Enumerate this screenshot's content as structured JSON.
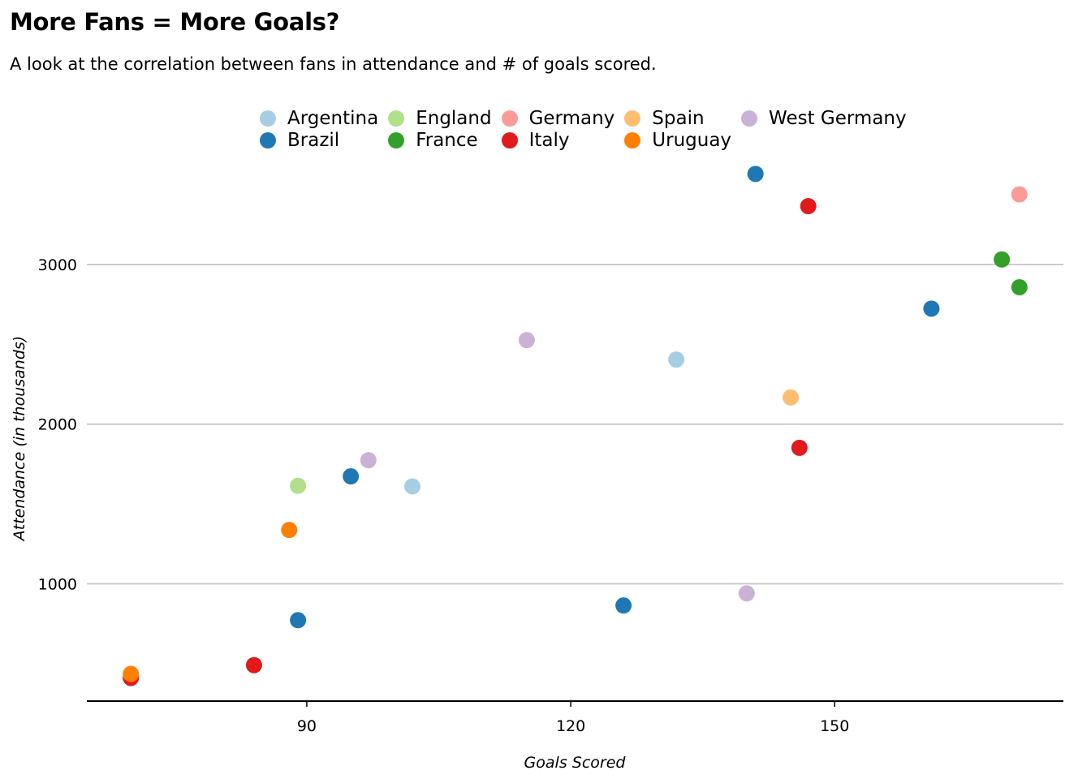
{
  "chart_data": {
    "type": "scatter",
    "title": "More Fans = More Goals?",
    "subtitle": "A look at the correlation between fans in attendance and # of goals scored.",
    "xlabel": "Goals Scored",
    "ylabel": "Attendance (in thousands)",
    "xlim": [
      65,
      176
    ],
    "ylim": [
      270,
      3590
    ],
    "xticks": [
      90,
      120,
      150
    ],
    "yticks": [
      1000,
      2000,
      3000
    ],
    "grid": "horizontal",
    "legend_position": "top",
    "series": [
      {
        "name": "Argentina",
        "color": "#a6cee3",
        "points": [
          [
            102,
            1610
          ],
          [
            132,
            2405
          ]
        ]
      },
      {
        "name": "Brazil",
        "color": "#1f78b4",
        "points": [
          [
            89,
            772
          ],
          [
            95,
            1673
          ],
          [
            126,
            864
          ],
          [
            141,
            3568
          ],
          [
            161,
            2724
          ]
        ]
      },
      {
        "name": "England",
        "color": "#b2df8a",
        "points": [
          [
            89,
            1614
          ]
        ]
      },
      {
        "name": "France",
        "color": "#33a02c",
        "points": [
          [
            169,
            3032
          ],
          [
            171,
            2858
          ]
        ]
      },
      {
        "name": "Germany",
        "color": "#fb9a99",
        "points": [
          [
            171,
            3440
          ]
        ]
      },
      {
        "name": "Italy",
        "color": "#e31a1c",
        "points": [
          [
            70,
            410
          ],
          [
            84,
            490
          ],
          [
            146,
            1852
          ],
          [
            147,
            3366
          ]
        ]
      },
      {
        "name": "Spain",
        "color": "#fdbf6f",
        "points": [
          [
            145,
            2167
          ]
        ]
      },
      {
        "name": "Uruguay",
        "color": "#ff7f00",
        "points": [
          [
            70,
            435
          ],
          [
            88,
            1337
          ]
        ]
      },
      {
        "name": "West Germany",
        "color": "#cab2d6",
        "points": [
          [
            97,
            1774
          ],
          [
            115,
            2527
          ],
          [
            140,
            940
          ]
        ]
      }
    ]
  }
}
